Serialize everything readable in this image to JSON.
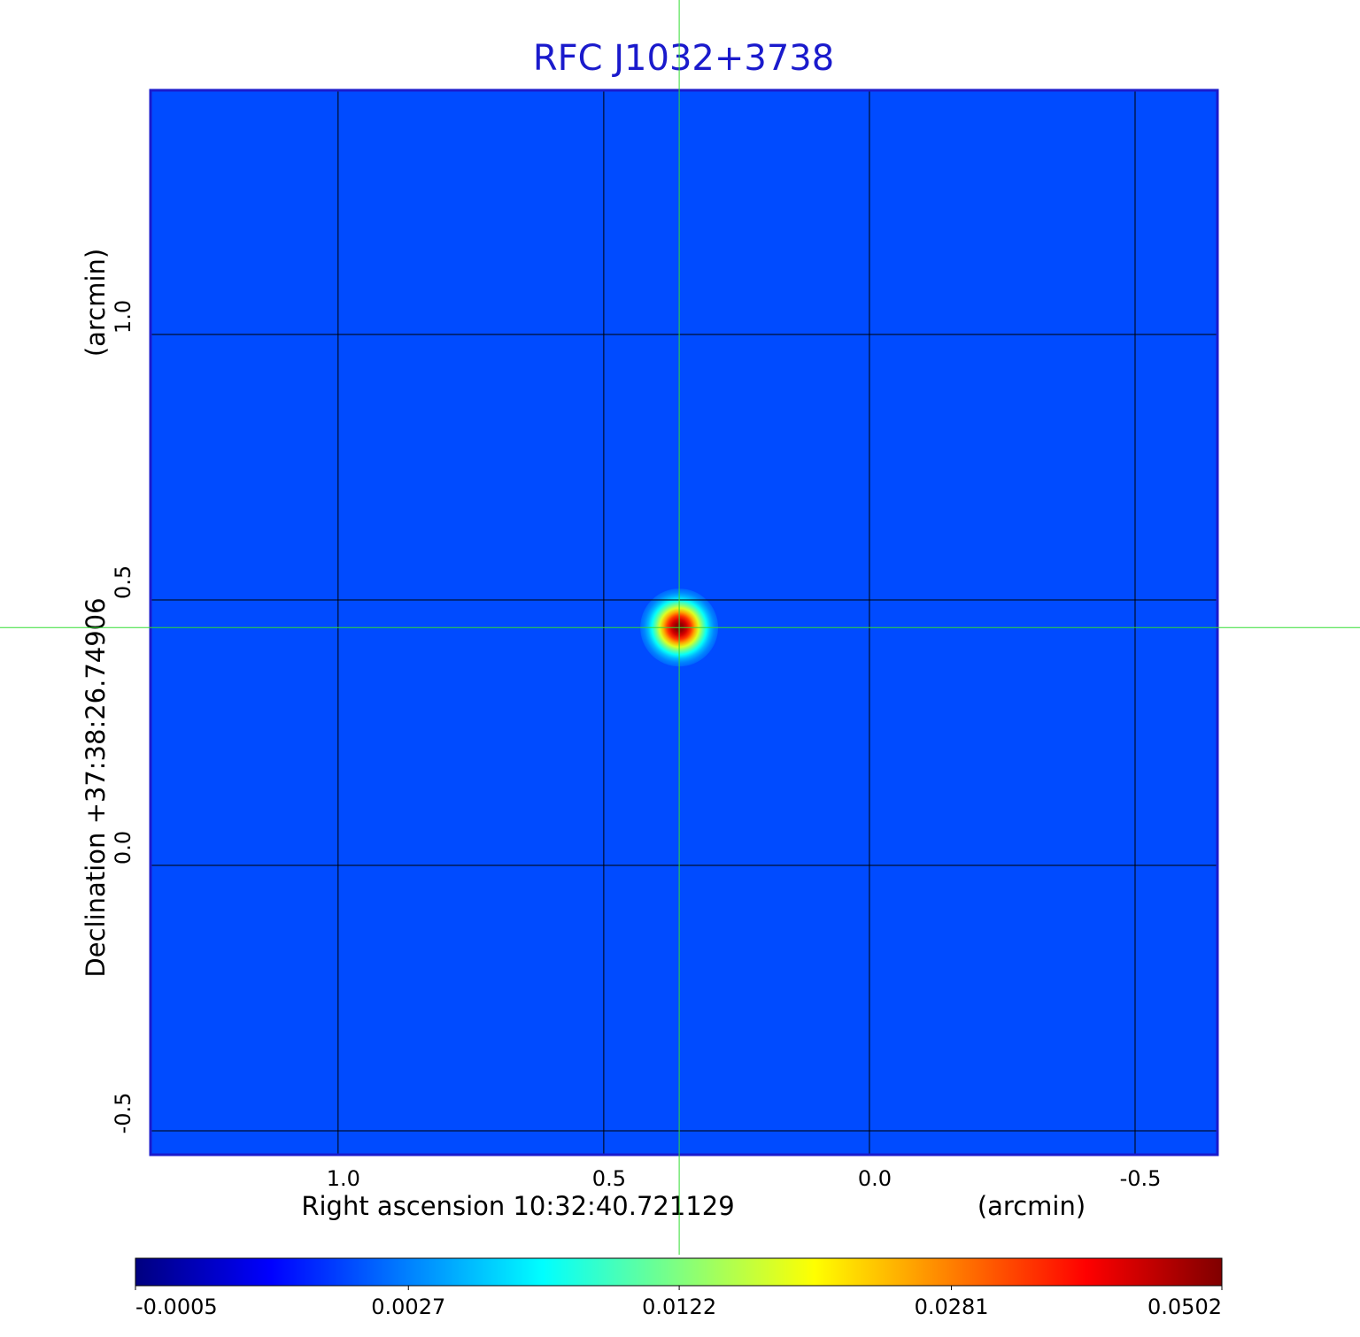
{
  "chart_data": {
    "type": "image",
    "title": "RFC J1032+3738",
    "x_label": "Right ascension  10:32:40.721129",
    "x_unit": "(arcmin)",
    "y_label": "Declination  +37:38:26.74906",
    "y_unit": "(arcmin)",
    "xlim": [
      1.353,
      -0.655
    ],
    "ylim": [
      -0.545,
      1.46
    ],
    "xticks": [
      {
        "value": 1,
        "label": "1.0"
      },
      0.5,
      {
        "value": 0,
        "label": "0.0"
      },
      -0.5
    ],
    "yticks": [
      {
        "value": 1,
        "label": "1.0"
      },
      0.5,
      {
        "value": 0,
        "label": "0.0"
      },
      -0.5
    ],
    "grid": true,
    "colormap": "jet",
    "colorbar_scale": "sqrt",
    "colorbar_lim": [
      -0.0005,
      0.0502
    ],
    "colorbar_ticks": [
      -0.0005,
      0.0027,
      0.0122,
      0.0281,
      0.0502
    ],
    "background_level": 0.0015,
    "source": {
      "x": 0.358,
      "y": 0.448,
      "peak": 0.0502
    },
    "crosshair_color": "#33dd33"
  }
}
